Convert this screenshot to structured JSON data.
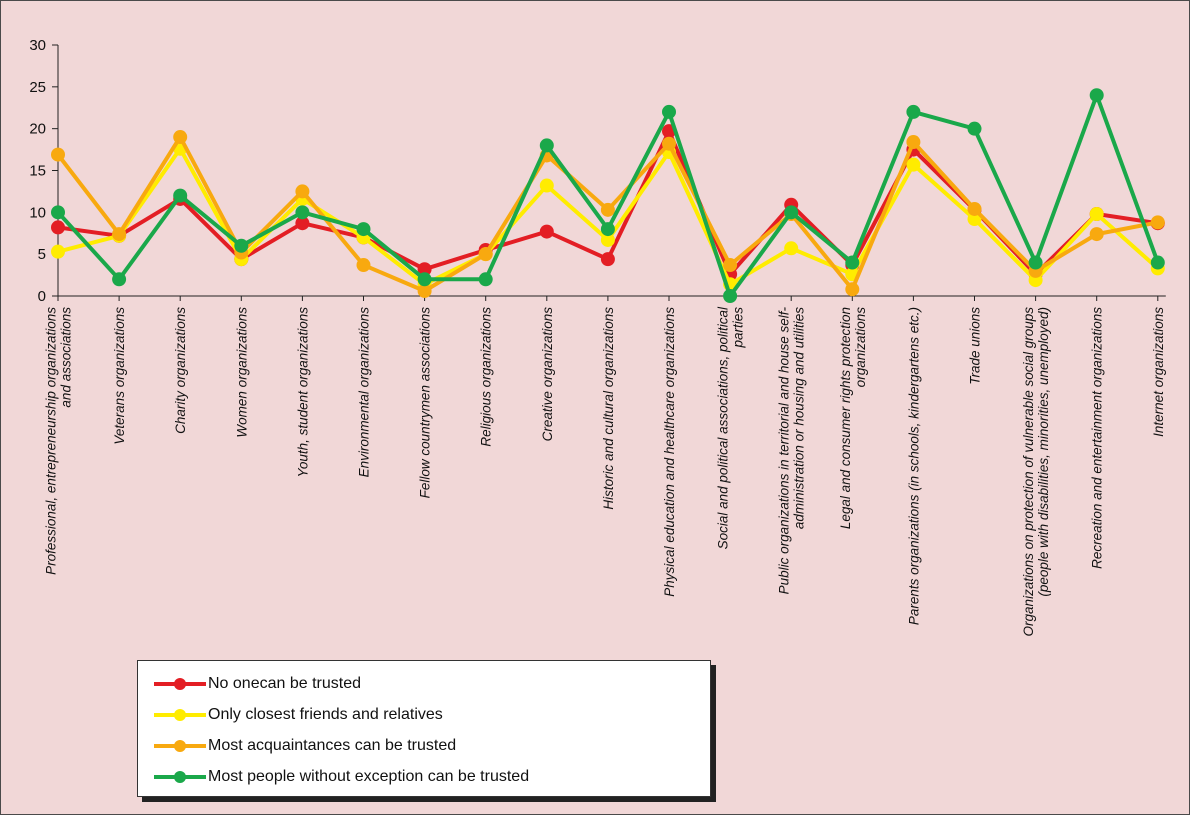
{
  "chart_data": {
    "type": "line",
    "title": "",
    "xlabel": "",
    "ylabel": "",
    "ylim": [
      0,
      30
    ],
    "yticks": [
      0,
      5,
      10,
      15,
      20,
      25,
      30
    ],
    "grid": false,
    "legend_position": "bottom-left",
    "categories": [
      [
        "Professional, entrepreneurship organizations",
        "and associations"
      ],
      [
        "Veterans organizations"
      ],
      [
        "Charity organizations"
      ],
      [
        "Women organizations"
      ],
      [
        "Youth, student organizations"
      ],
      [
        "Environmental organizations"
      ],
      [
        "Fellow countrymen associations"
      ],
      [
        "Religious organizations"
      ],
      [
        "Creative organizations"
      ],
      [
        "Historic and cultural organizations"
      ],
      [
        "Physical education and healthcare organizations"
      ],
      [
        "Social and political associations, political",
        "parties"
      ],
      [
        "Public organizations in territorial and house self-",
        "administration or housing and utilities"
      ],
      [
        "Legal and consumer rights protection",
        "organizations"
      ],
      [
        "Parents organizations (in schools, kindergartens etc.)"
      ],
      [
        "Trade unions"
      ],
      [
        "Organizations on protection of vulnerable social groups",
        "(people with disabilities, minorities, unemployed)"
      ],
      [
        "Recreation and entertainment organizations"
      ],
      [
        "Internet organizations"
      ]
    ],
    "series": [
      {
        "name": "No onecan be trusted",
        "color": "#e31e24",
        "values": [
          8.2,
          7.2,
          11.6,
          4.4,
          8.7,
          7.0,
          3.2,
          5.5,
          7.7,
          4.4,
          19.7,
          2.6,
          10.9,
          3.7,
          17.5,
          10.3,
          2.6,
          9.8,
          8.7
        ]
      },
      {
        "name": "Only closest friends and relatives",
        "color": "#ffec00",
        "values": [
          5.3,
          7.2,
          17.6,
          4.4,
          11.6,
          7.0,
          1.4,
          5.0,
          13.2,
          6.7,
          17.2,
          1.4,
          5.7,
          2.6,
          15.7,
          9.2,
          1.9,
          9.8,
          3.3
        ]
      },
      {
        "name": "Most acquaintances can be trusted",
        "color": "#f8a90f",
        "values": [
          16.9,
          7.4,
          19.0,
          5.2,
          12.5,
          3.7,
          0.6,
          5.0,
          16.8,
          10.3,
          18.2,
          3.7,
          9.8,
          0.8,
          18.4,
          10.4,
          3.0,
          7.4,
          8.8
        ]
      },
      {
        "name": "Most people without exception can be trusted",
        "color": "#1aa84a",
        "values": [
          10.0,
          2.0,
          12.0,
          6.0,
          10.0,
          8.0,
          2.0,
          2.0,
          18.0,
          8.0,
          22.0,
          0.0,
          10.0,
          4.0,
          22.0,
          20.0,
          4.0,
          24.0,
          4.0
        ]
      }
    ]
  }
}
